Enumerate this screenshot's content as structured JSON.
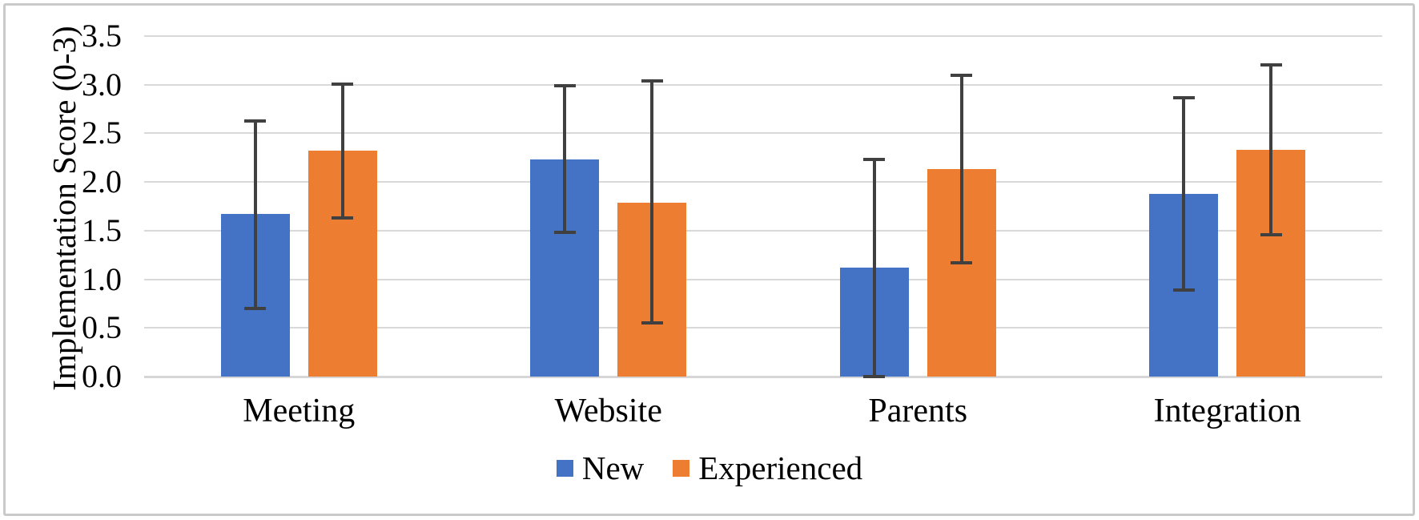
{
  "chart_data": {
    "type": "bar",
    "title": "",
    "xlabel": "",
    "ylabel": "Implementation Score (0-3)",
    "categories": [
      "Meeting",
      "Website",
      "Parents",
      "Integration"
    ],
    "series": [
      {
        "name": "New",
        "color": "#4472C4",
        "values": [
          1.67,
          2.23,
          1.12,
          1.88
        ],
        "error_low": [
          0.7,
          1.48,
          0.0,
          0.89
        ],
        "error_high": [
          2.63,
          2.99,
          2.23,
          2.87
        ]
      },
      {
        "name": "Experienced",
        "color": "#ED7D31",
        "values": [
          2.32,
          1.79,
          2.13,
          2.33
        ],
        "error_low": [
          1.63,
          0.55,
          1.17,
          1.46
        ],
        "error_high": [
          3.01,
          3.04,
          3.1,
          3.2
        ]
      }
    ],
    "ylim": [
      0,
      3.5
    ],
    "yticks": [
      0,
      0.5,
      1,
      1.5,
      2,
      2.5,
      3,
      3.5
    ],
    "ytick_labels": [
      "0.0",
      "0.5",
      "1.0",
      "1.5",
      "2.0",
      "2.5",
      "3.0",
      "3.5"
    ],
    "grid": true,
    "legend_position": "bottom",
    "colors": {
      "gridline": "#D9D9D9",
      "axis_line": "#D6D6D6",
      "error_bar": "#404040",
      "text": "#000000",
      "frame_border": "#C9C9C9"
    }
  }
}
